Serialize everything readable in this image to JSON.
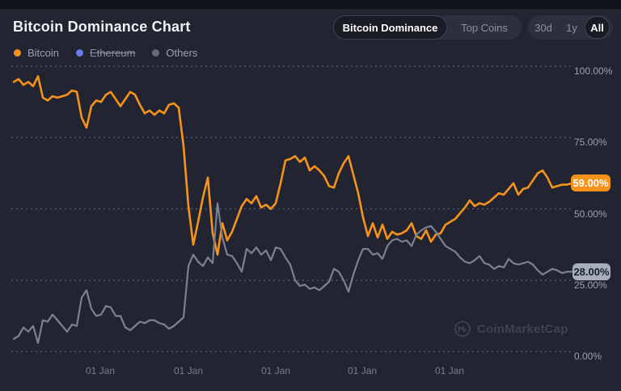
{
  "header": {
    "title": "Bitcoin Dominance Chart"
  },
  "tabs": {
    "items": [
      {
        "label": "Bitcoin Dominance",
        "selected": true
      },
      {
        "label": "Top Coins",
        "selected": false
      }
    ]
  },
  "range": {
    "items": [
      {
        "label": "30d",
        "selected": false
      },
      {
        "label": "1y",
        "selected": false
      },
      {
        "label": "All",
        "selected": true
      }
    ]
  },
  "legend": [
    {
      "label": "Bitcoin",
      "color": "#f7931a",
      "disabled": false
    },
    {
      "label": "Ethereum",
      "color": "#627eea",
      "disabled": true
    },
    {
      "label": "Others",
      "color": "#646b7d",
      "disabled": false
    }
  ],
  "watermark": {
    "label": "CoinMarketCap"
  },
  "chart_data": {
    "type": "line",
    "title": "Bitcoin Dominance Chart",
    "ylim": [
      0,
      100
    ],
    "grid": "dashed-horizontal",
    "legend_position": "top-left",
    "y_ticks": [
      "100.00%",
      "75.00%",
      "50.00%",
      "25.00%",
      "0.00%"
    ],
    "x_ticks": [
      "01 Jan",
      "01 Jan",
      "01 Jan",
      "01 Jan",
      "01 Jan"
    ],
    "series": [
      {
        "name": "Bitcoin",
        "color": "#f7931a",
        "width": 2.6,
        "current": "59.00%",
        "values": [
          94.5,
          95.5,
          93.5,
          94.5,
          93,
          96.5,
          89,
          88,
          89.5,
          89,
          89.5,
          90,
          91.5,
          91,
          82,
          78.5,
          86,
          88,
          87.5,
          90,
          91,
          88.5,
          86,
          88.5,
          91,
          90,
          86.5,
          83.5,
          84.5,
          83,
          84.5,
          83.5,
          86.5,
          87,
          85.5,
          72,
          51,
          37.5,
          45.5,
          54,
          61,
          41.5,
          34,
          45,
          39,
          42,
          46.5,
          51,
          53.5,
          52,
          54.5,
          50.5,
          51.5,
          50,
          52,
          59,
          67,
          67.5,
          68.5,
          66.5,
          68,
          63.5,
          65,
          63.5,
          61.5,
          58,
          57.5,
          62.5,
          66,
          68.5,
          62,
          55.5,
          47,
          40.5,
          45,
          40,
          44.5,
          39.5,
          42,
          41,
          41.5,
          42.5,
          45,
          40.5,
          39.5,
          42.5,
          38.5,
          41,
          41.5,
          44.5,
          45.5,
          46.5,
          48.5,
          50.5,
          53,
          51,
          52,
          51.5,
          52.5,
          54,
          55.5,
          55,
          57,
          59,
          55,
          57,
          57.5,
          60,
          62.5,
          63.5,
          61,
          57.5,
          58,
          58.5,
          58.5,
          59
        ]
      },
      {
        "name": "Ethereum",
        "color": "#627eea",
        "hidden": true,
        "values": []
      },
      {
        "name": "Others",
        "color": "#798195",
        "width": 2.2,
        "current": "28.00%",
        "values": [
          4.5,
          5.5,
          8.5,
          7,
          9,
          3,
          11,
          10.5,
          13,
          11,
          9,
          7,
          9.5,
          9,
          19,
          21.5,
          15,
          12.5,
          13,
          16,
          15.5,
          12.5,
          12.5,
          8.5,
          7.5,
          9,
          10.5,
          10,
          11,
          11,
          10,
          9.5,
          8,
          9,
          10.5,
          12,
          30,
          34,
          31.5,
          30,
          33,
          31,
          52,
          40,
          34,
          33.5,
          31,
          28,
          36,
          34.5,
          36.5,
          34,
          35.5,
          32,
          36.5,
          36,
          33,
          30.5,
          25,
          23,
          23.5,
          22,
          22.5,
          21.5,
          23,
          24.5,
          29,
          28,
          25,
          21,
          27,
          32,
          36,
          36,
          34,
          34.5,
          32.5,
          37,
          39,
          39.5,
          38.5,
          39,
          37,
          41,
          42.5,
          43.5,
          44,
          42,
          39.5,
          37,
          36,
          35,
          33,
          31.5,
          31,
          32,
          33.5,
          31,
          30.5,
          29,
          30,
          29.5,
          32.5,
          31,
          30.5,
          31,
          31.5,
          30.5,
          28.5,
          27,
          28,
          29,
          28.5,
          27.5,
          28,
          28
        ]
      }
    ],
    "badges": {
      "bitcoin": {
        "label": "59.00%",
        "bg": "#f7931a",
        "fg": "#ffffff"
      },
      "others": {
        "label": "28.00%",
        "bg": "#a6adbd",
        "fg": "#1b1e27"
      }
    }
  }
}
